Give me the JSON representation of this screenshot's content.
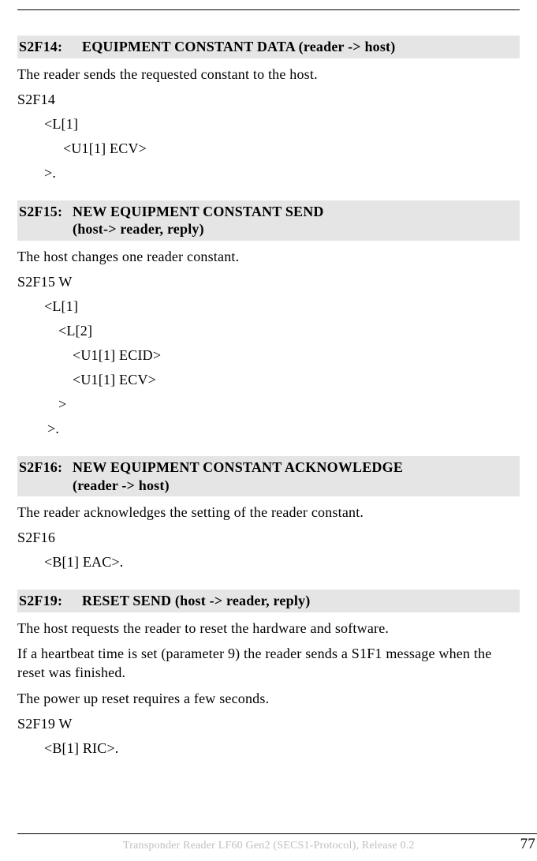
{
  "sections": [
    {
      "heading_code": "S2F14:",
      "heading_title": "EQUIPMENT CONSTANT DATA (reader -> host)",
      "paragraphs": [
        "The reader sends the requested constant to the host.",
        "S2F14"
      ],
      "struct": [
        {
          "cls": "indent1",
          "text": "<L[1]"
        },
        {
          "cls": "indent2",
          "text": "<U1[1] ECV>"
        },
        {
          "cls": "indent1",
          "text": ">."
        }
      ]
    },
    {
      "heading_code": "S2F15:",
      "heading_title_lines": [
        "NEW EQUIPMENT CONSTANT SEND",
        "(host-> reader, reply)"
      ],
      "paragraphs": [
        "The host changes one reader constant.",
        "S2F15 W"
      ],
      "struct": [
        {
          "cls": "indent1",
          "text": "<L[1]"
        },
        {
          "cls": "indent2c",
          "text": "<L[2]"
        },
        {
          "cls": "indent3",
          "text": "<U1[1] ECID>"
        },
        {
          "cls": "indent3",
          "text": "<U1[1] ECV>"
        },
        {
          "cls": "indent2c",
          "text": ">"
        },
        {
          "cls": "indent1b",
          "text": ">."
        }
      ]
    },
    {
      "heading_code": "S2F16:",
      "heading_title_lines": [
        "NEW EQUIPMENT CONSTANT ACKNOWLEDGE",
        "(reader -> host)"
      ],
      "paragraphs": [
        "The reader acknowledges the setting of the reader constant.",
        "S2F16"
      ],
      "struct": [
        {
          "cls": "indent1",
          "text": "<B[1] EAC>."
        }
      ]
    },
    {
      "heading_code": "S2F19:",
      "heading_title": "RESET SEND (host -> reader, reply)",
      "paragraphs": [
        "The host requests the reader to reset the hardware and software.",
        "If a heartbeat time is set (parameter 9) the reader sends a S1F1 message when the reset was finished.",
        "The power up reset requires a few seconds.",
        "S2F19 W"
      ],
      "struct": [
        {
          "cls": "indent1",
          "text": "<B[1] RIC>."
        }
      ]
    }
  ],
  "footer_text": "Transponder Reader LF60 Gen2 (SECS1-Protocol), Release 0.2",
  "page_number": "77"
}
